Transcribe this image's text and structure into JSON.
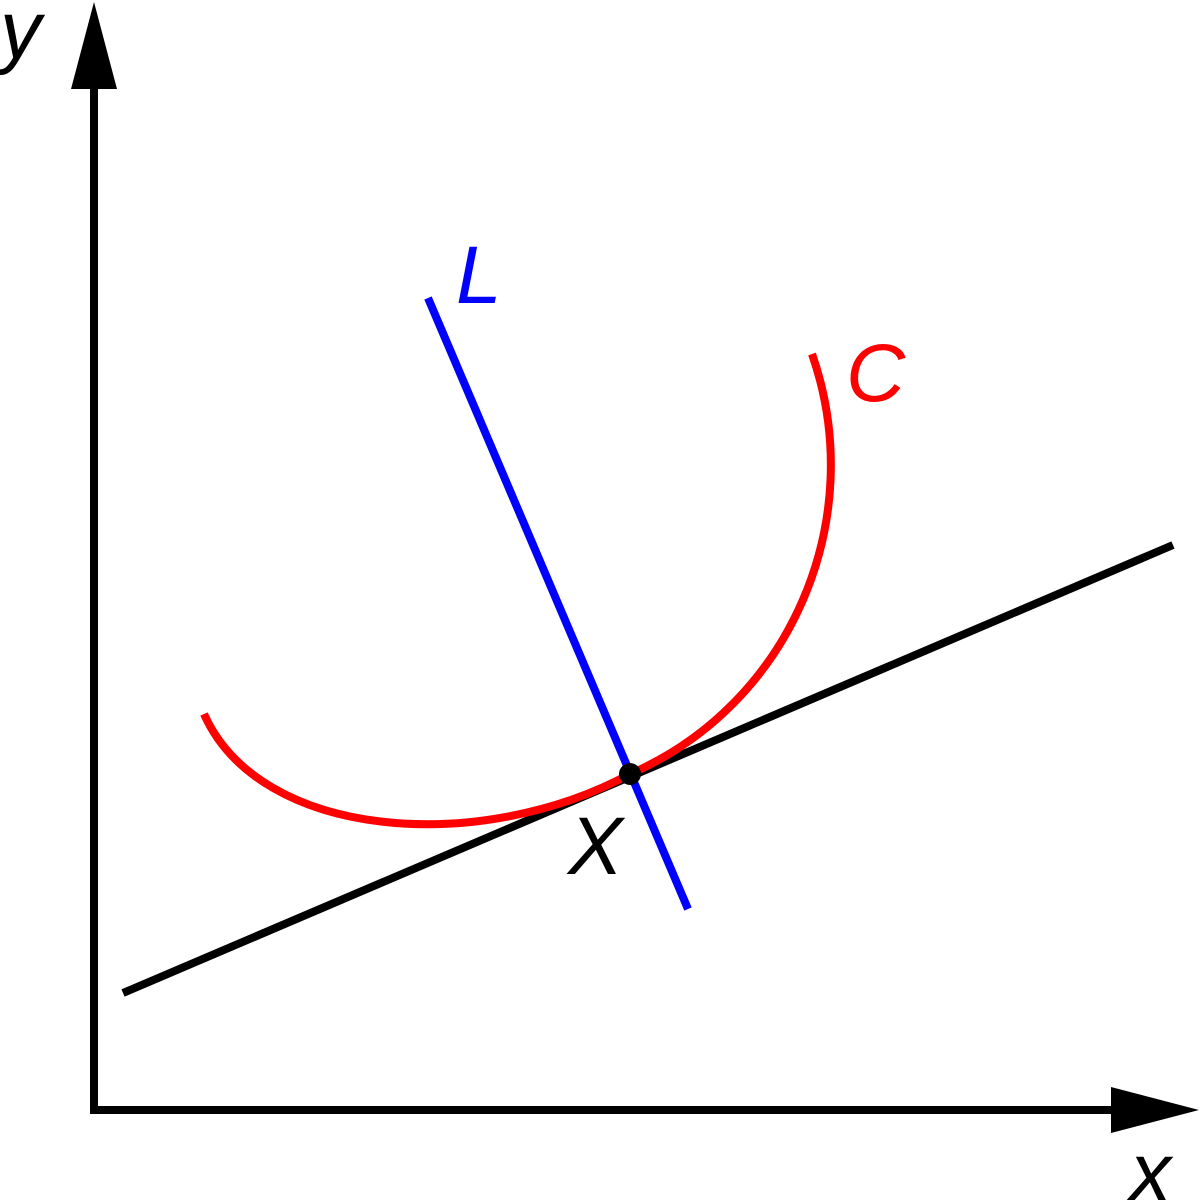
{
  "axes": {
    "x_label": "x",
    "y_label": "y",
    "color": "#000000"
  },
  "curve": {
    "label": "C",
    "color": "#ff0000"
  },
  "normal_line": {
    "label": "L",
    "color": "#0000ff"
  },
  "tangent_line": {
    "color": "#000000"
  },
  "point": {
    "label": "X",
    "color": "#000000"
  }
}
